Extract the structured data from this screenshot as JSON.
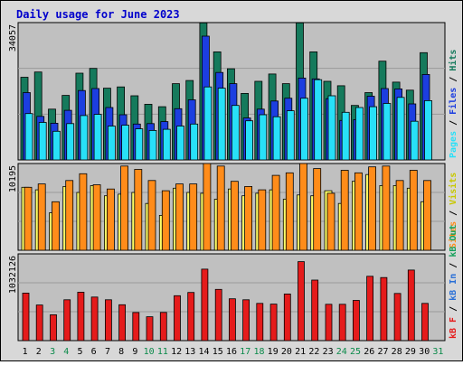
{
  "title": "Daily usage for June 2023",
  "colors": {
    "title": "#0000cc",
    "hits": "#157a5c",
    "files": "#1c3ee0",
    "pages": "#28e0f8",
    "visits": "#ffff66",
    "sites": "#ff8c1a",
    "kb_f": "#e51b1b",
    "kb_in": "#2a6fd6",
    "kb_out": "#15a15a",
    "plot_bg": "#c0c0c0",
    "page_bg": "#d8d8d8",
    "weekend_day": "#0a8a4a",
    "weekday_day": "#000000"
  },
  "axis_max_labels": {
    "top": "34057",
    "middle": "10195",
    "bottom": "1032126"
  },
  "side_labels": {
    "top": [
      "Hits",
      "Files",
      "Pages"
    ],
    "middle": [
      "Visits",
      "Sites"
    ],
    "bottom": [
      "kB Out",
      "kB In",
      "kB F"
    ]
  },
  "chart_data": [
    {
      "type": "bar",
      "panel": "top",
      "title": "Daily usage for June 2023",
      "categories": [
        "1",
        "2",
        "3",
        "4",
        "5",
        "6",
        "7",
        "8",
        "9",
        "10",
        "11",
        "12",
        "13",
        "14",
        "15",
        "16",
        "17",
        "18",
        "19",
        "20",
        "21",
        "22",
        "23",
        "24",
        "25",
        "26",
        "27",
        "28",
        "29",
        "30",
        "31"
      ],
      "weekend_days": [
        "3",
        "4",
        "10",
        "11",
        "17",
        "18",
        "24",
        "25",
        "31"
      ],
      "ylim": [
        0,
        34057
      ],
      "series": [
        {
          "name": "Hits",
          "values": [
            20500,
            21800,
            12600,
            16000,
            21500,
            22700,
            17800,
            18100,
            15900,
            13800,
            13200,
            18900,
            19700,
            34000,
            26800,
            22600,
            16500,
            19500,
            21300,
            18900,
            34000,
            26800,
            19500,
            18400,
            13500,
            16700,
            24500,
            19300,
            17300,
            26600,
            null
          ]
        },
        {
          "name": "Files",
          "values": [
            16700,
            10800,
            9100,
            12300,
            17200,
            17700,
            13000,
            11200,
            8900,
            9000,
            9500,
            12700,
            14900,
            30700,
            21700,
            18900,
            10400,
            12600,
            14600,
            15300,
            20300,
            20100,
            15200,
            9800,
            10000,
            15800,
            17700,
            17600,
            13900,
            21200,
            null
          ]
        },
        {
          "name": "Pages",
          "values": [
            11500,
            9300,
            7100,
            9000,
            11000,
            11300,
            8400,
            8600,
            7700,
            7300,
            7600,
            8400,
            8900,
            18100,
            17800,
            13500,
            9700,
            11200,
            10700,
            12200,
            15300,
            19900,
            15900,
            11800,
            13000,
            13200,
            14000,
            15500,
            9600,
            14700,
            null
          ]
        }
      ]
    },
    {
      "type": "bar",
      "panel": "middle",
      "categories": [
        "1",
        "2",
        "3",
        "4",
        "5",
        "6",
        "7",
        "8",
        "9",
        "10",
        "11",
        "12",
        "13",
        "14",
        "15",
        "16",
        "17",
        "18",
        "19",
        "20",
        "21",
        "22",
        "23",
        "24",
        "25",
        "26",
        "27",
        "28",
        "29",
        "30",
        "31"
      ],
      "ylim": [
        0,
        10195
      ],
      "series": [
        {
          "name": "Visits",
          "values": [
            7400,
            7100,
            4400,
            7500,
            6800,
            7600,
            6400,
            6600,
            6800,
            5500,
            4100,
            7300,
            6800,
            6700,
            6000,
            7200,
            6400,
            6700,
            7100,
            6000,
            6500,
            6400,
            7000,
            5500,
            8100,
            8900,
            7600,
            7600,
            7300,
            5700,
            null
          ]
        },
        {
          "name": "Sites",
          "values": [
            7400,
            7800,
            5700,
            8200,
            9000,
            7700,
            7200,
            9900,
            9500,
            8200,
            7000,
            7800,
            7800,
            10200,
            9900,
            8100,
            7500,
            7100,
            8800,
            9100,
            10500,
            9600,
            6700,
            9400,
            9100,
            9800,
            9900,
            8200,
            9400,
            8200,
            null
          ]
        }
      ]
    },
    {
      "type": "bar",
      "panel": "bottom",
      "categories": [
        "1",
        "2",
        "3",
        "4",
        "5",
        "6",
        "7",
        "8",
        "9",
        "10",
        "11",
        "12",
        "13",
        "14",
        "15",
        "16",
        "17",
        "18",
        "19",
        "20",
        "21",
        "22",
        "23",
        "24",
        "25",
        "26",
        "27",
        "28",
        "29",
        "30",
        "31"
      ],
      "ylim": [
        0,
        1032126
      ],
      "series": [
        {
          "name": "kB F",
          "values": [
            565000,
            424000,
            307000,
            486000,
            576000,
            518000,
            486000,
            427000,
            334000,
            284000,
            335000,
            534000,
            573000,
            850000,
            610000,
            498000,
            486000,
            443000,
            434000,
            555000,
            940000,
            720000,
            432000,
            432000,
            478000,
            765000,
            750000,
            561000,
            840000,
            443000,
            null
          ]
        }
      ]
    }
  ]
}
